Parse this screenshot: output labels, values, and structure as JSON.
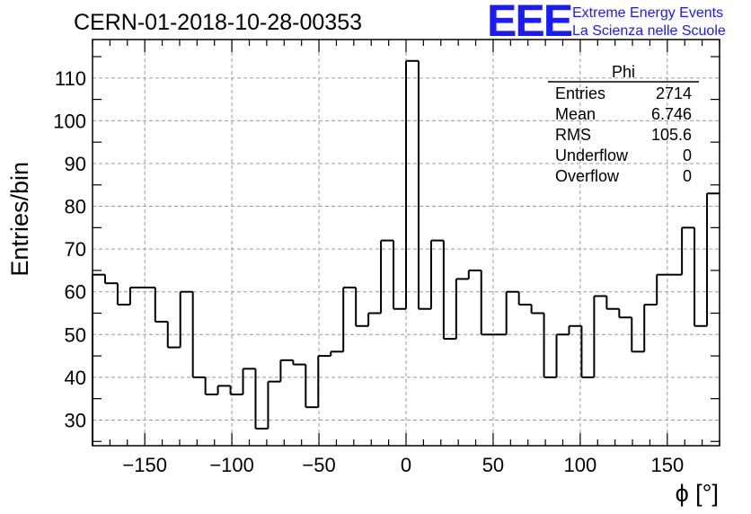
{
  "header": {
    "title": "CERN-01-2018-10-28-00353",
    "logo_text": "EEE",
    "logo_line1": "Extreme Energy Events",
    "logo_line2": "La Scienza nelle Scuole"
  },
  "stats": {
    "name": "Phi",
    "rows": [
      {
        "label": "Entries",
        "value": "2714"
      },
      {
        "label": "Mean",
        "value": "6.746"
      },
      {
        "label": "RMS",
        "value": "105.6"
      },
      {
        "label": "Underflow",
        "value": "0"
      },
      {
        "label": "Overflow",
        "value": "0"
      }
    ]
  },
  "colors": {
    "line": "#000000",
    "logo": "#1a1aff",
    "grid": "#9a9a9a"
  },
  "chart_data": {
    "type": "bar",
    "style": "step-histogram",
    "xlabel": "ϕ [°]",
    "ylabel": "Entries/bin",
    "xlim": [
      -180,
      180
    ],
    "ylim": [
      24,
      119
    ],
    "bin_width": 7.2,
    "xticks": [
      -150,
      -100,
      -50,
      0,
      50,
      100,
      150
    ],
    "yticks": [
      30,
      40,
      50,
      60,
      70,
      80,
      90,
      100,
      110
    ],
    "grid": true,
    "values": [
      64,
      62,
      57,
      61,
      61,
      53,
      47,
      60,
      40,
      36,
      38,
      36,
      42,
      28,
      39,
      44,
      43,
      33,
      45,
      46,
      61,
      52,
      55,
      72,
      56,
      114,
      56,
      72,
      49,
      63,
      65,
      50,
      50,
      60,
      57,
      55,
      40,
      50,
      52,
      40,
      59,
      56,
      54,
      46,
      57,
      64,
      64,
      75,
      52,
      83
    ]
  }
}
